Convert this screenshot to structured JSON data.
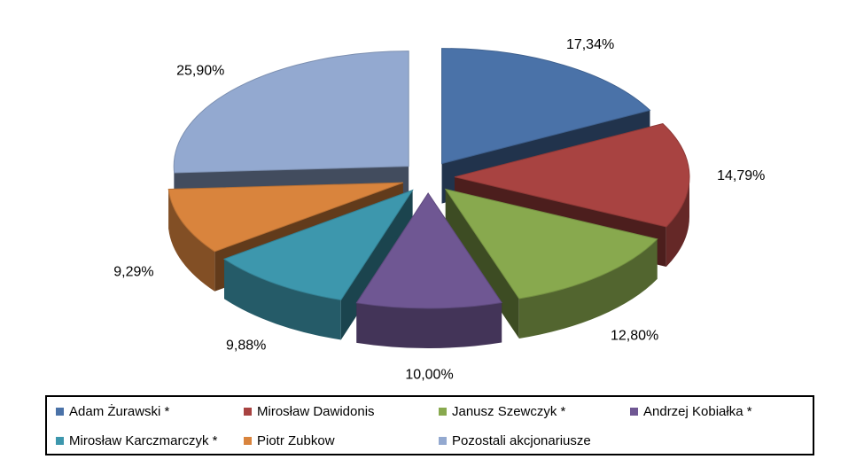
{
  "chart_data": {
    "type": "pie",
    "categories": [
      "Adam Żurawski *",
      "Mirosław Dawidonis",
      "Janusz Szewczyk *",
      "Andrzej Kobiałka *",
      "Mirosław Karczmarczyk *",
      "Piotr Zubkow",
      "Pozostali akcjonariusze"
    ],
    "values": [
      17.34,
      14.79,
      12.8,
      10.0,
      9.88,
      9.29,
      25.9
    ],
    "data_labels": [
      "17,34%",
      "14,79%",
      "12,80%",
      "10,00%",
      "9,88%",
      "9,29%",
      "25,90%"
    ],
    "colors": [
      "#4A72A8",
      "#A84341",
      "#88A94E",
      "#6F5793",
      "#3D97AD",
      "#D9843D",
      "#93A9D0"
    ],
    "style": "3d-exploded",
    "legend_position": "bottom"
  }
}
